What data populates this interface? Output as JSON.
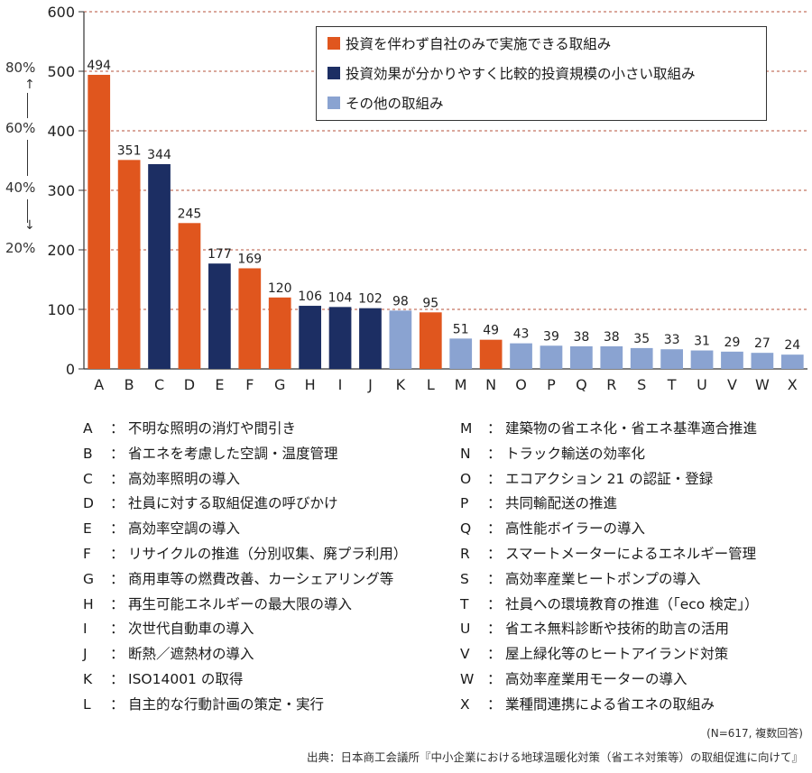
{
  "chart_data": {
    "type": "bar",
    "categories": [
      "A",
      "B",
      "C",
      "D",
      "E",
      "F",
      "G",
      "H",
      "I",
      "J",
      "K",
      "L",
      "M",
      "N",
      "O",
      "P",
      "Q",
      "R",
      "S",
      "T",
      "U",
      "V",
      "W",
      "X"
    ],
    "values": [
      494,
      351,
      344,
      245,
      177,
      169,
      120,
      106,
      104,
      102,
      98,
      95,
      51,
      49,
      43,
      39,
      38,
      38,
      35,
      33,
      31,
      29,
      27,
      24
    ],
    "groups": [
      0,
      0,
      1,
      0,
      1,
      0,
      0,
      1,
      1,
      1,
      2,
      0,
      2,
      0,
      2,
      2,
      2,
      2,
      2,
      2,
      2,
      2,
      2,
      2
    ],
    "group_colors": [
      "#E0561E",
      "#1C2E63",
      "#8AA3D1"
    ],
    "ylim": [
      0,
      600
    ],
    "yticks": [
      0,
      100,
      200,
      300,
      400,
      500,
      600
    ],
    "grid": true,
    "legend": {
      "position": "top-right",
      "entries": [
        "投資を伴わず自社のみで実施できる取組み",
        "投資効果が分かりやすく比較的投資規模の小さい取組み",
        "その他の取組み"
      ]
    },
    "pct_axis": [
      "80%",
      "60%",
      "40%",
      "20%"
    ]
  },
  "keys_left": [
    {
      "letter": "A",
      "text": "不明な照明の消灯や間引き"
    },
    {
      "letter": "B",
      "text": "省エネを考慮した空調・温度管理"
    },
    {
      "letter": "C",
      "text": "高効率照明の導入"
    },
    {
      "letter": "D",
      "text": "社員に対する取組促進の呼びかけ"
    },
    {
      "letter": "E",
      "text": "高効率空調の導入"
    },
    {
      "letter": "F",
      "text": "リサイクルの推進（分別収集、廃プラ利用）"
    },
    {
      "letter": "G",
      "text": "商用車等の燃費改善、カーシェアリング等"
    },
    {
      "letter": "H",
      "text": "再生可能エネルギーの最大限の導入"
    },
    {
      "letter": "I",
      "text": "次世代自動車の導入"
    },
    {
      "letter": "J",
      "text": "断熱／遮熱材の導入"
    },
    {
      "letter": "K",
      "text": "ISO14001 の取得"
    },
    {
      "letter": "L",
      "text": "自主的な行動計画の策定・実行"
    }
  ],
  "keys_right": [
    {
      "letter": "M",
      "text": "建築物の省エネ化・省エネ基準適合推進"
    },
    {
      "letter": "N",
      "text": "トラック輸送の効率化"
    },
    {
      "letter": "O",
      "text": "エコアクション 21 の認証・登録"
    },
    {
      "letter": "P",
      "text": "共同輸配送の推進"
    },
    {
      "letter": "Q",
      "text": "高性能ボイラーの導入"
    },
    {
      "letter": "R",
      "text": "スマートメーターによるエネルギー管理"
    },
    {
      "letter": "S",
      "text": "高効率産業ヒートポンプの導入"
    },
    {
      "letter": "T",
      "text": "社員への環境教育の推進（「eco 検定」）"
    },
    {
      "letter": "U",
      "text": "省エネ無料診断や技術的助言の活用"
    },
    {
      "letter": "V",
      "text": "屋上緑化等のヒートアイランド対策"
    },
    {
      "letter": "W",
      "text": "高効率産業用モーターの導入"
    },
    {
      "letter": "X",
      "text": "業種間連携による省エネの取組み"
    }
  ],
  "note": "(N=617, 複数回答)",
  "source": "出典：日本商工会議所『中小企業における地球温暖化対策（省エネ対策等）の取組促進に向けて』"
}
